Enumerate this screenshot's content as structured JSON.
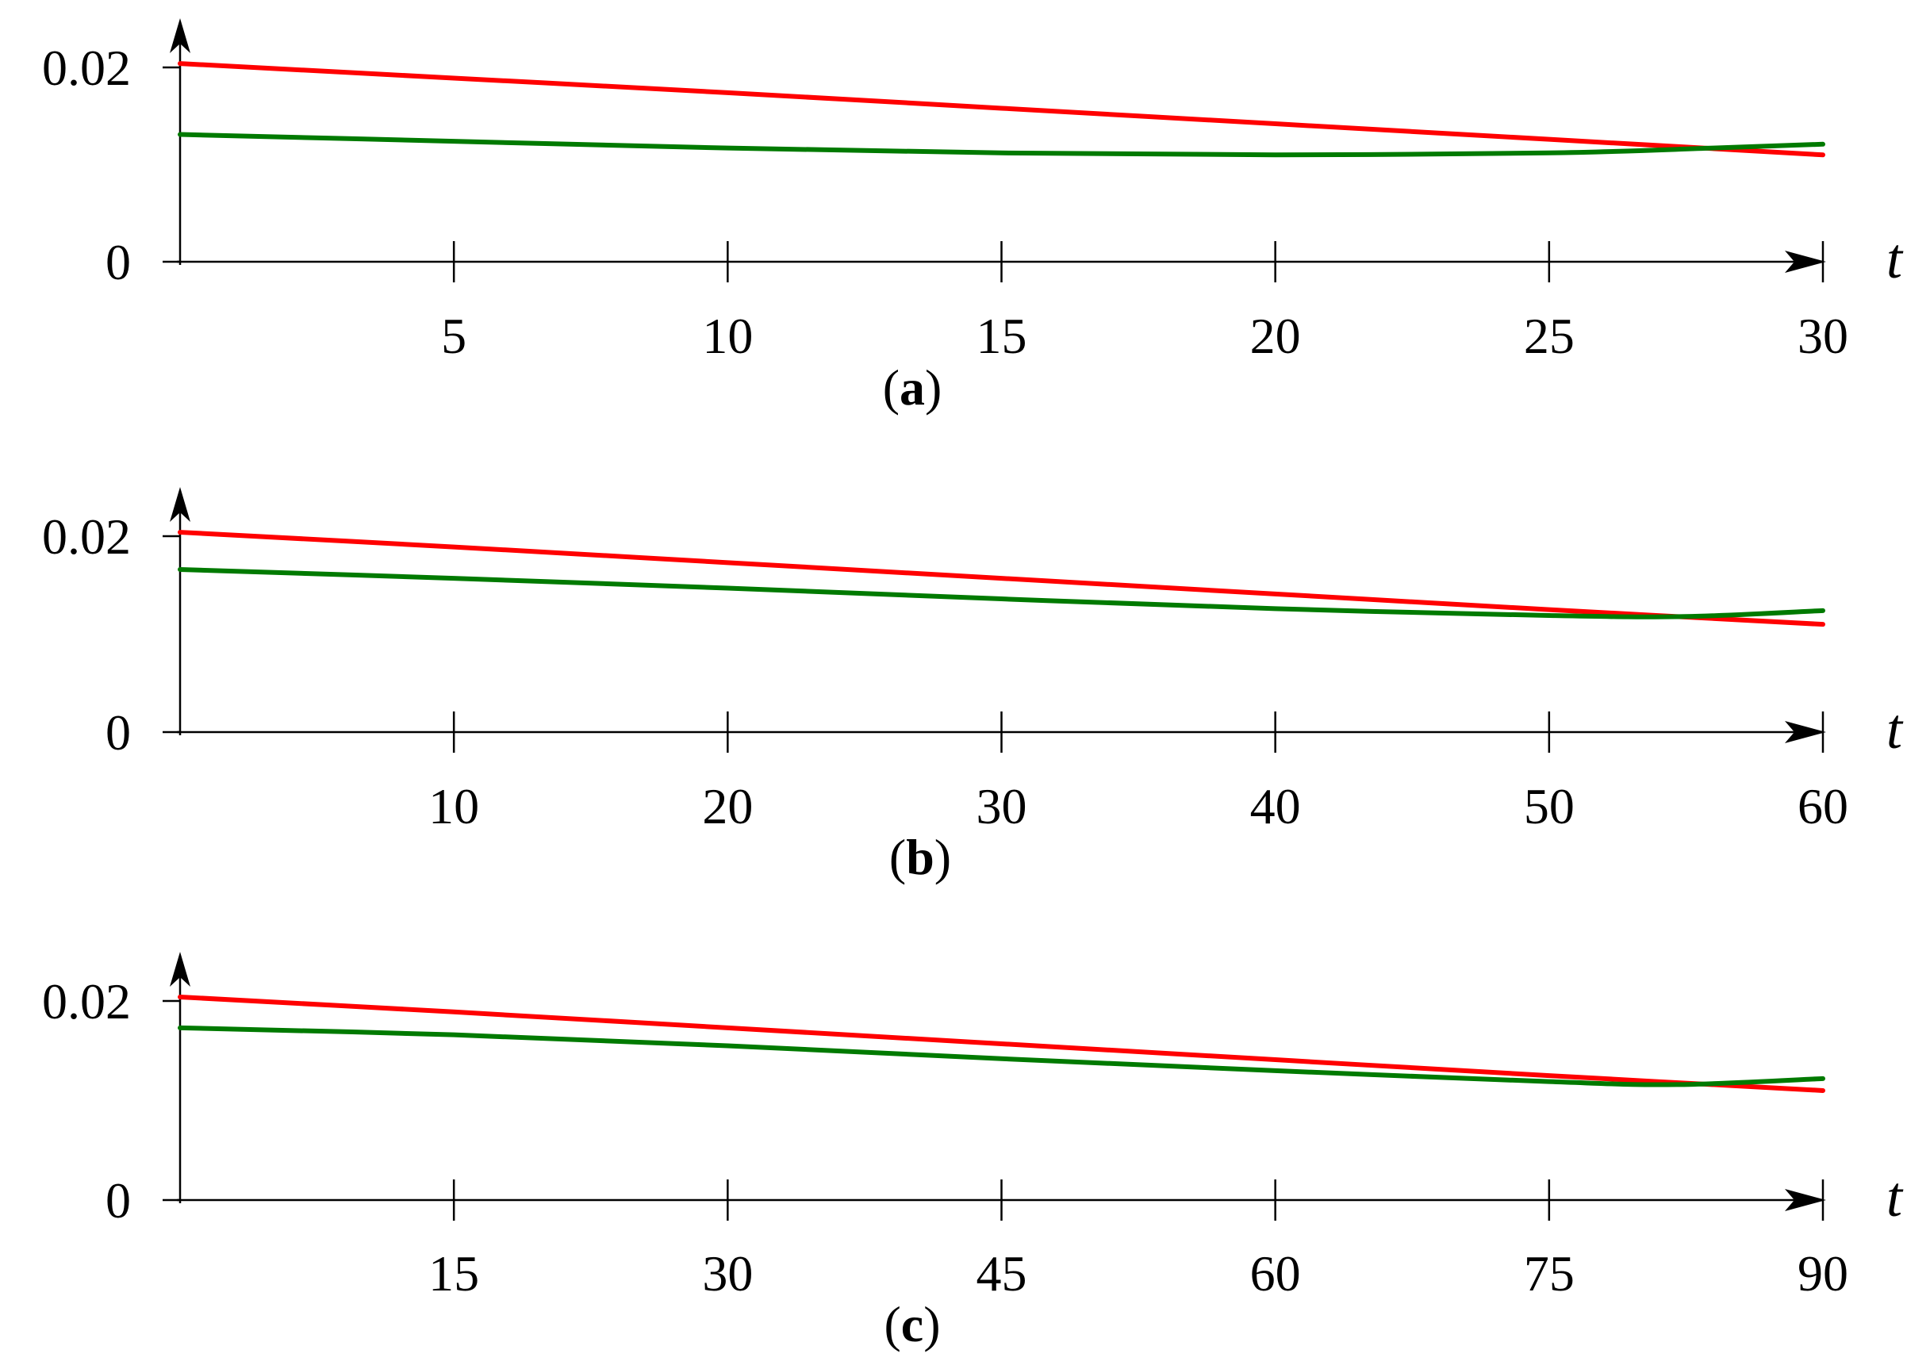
{
  "chart_data": [
    {
      "type": "line",
      "panel_label": "a",
      "xlabel": "t",
      "ylabel": "",
      "xlim": [
        0,
        30
      ],
      "ylim": [
        0,
        0.02
      ],
      "xticks": [
        5,
        10,
        15,
        20,
        25,
        30
      ],
      "xtick_labels": [
        "5",
        "10",
        "15",
        "20",
        "25",
        "30"
      ],
      "yticks": [
        0,
        0.02
      ],
      "ytick_labels": [
        "0",
        "0.02"
      ],
      "grid": false,
      "series": [
        {
          "color": "#ff0000",
          "x": [
            0,
            5,
            10,
            15,
            20,
            25,
            30
          ],
          "y": [
            0.0204,
            0.0189,
            0.0174,
            0.0158,
            0.0142,
            0.0126,
            0.011
          ]
        },
        {
          "color": "#007a00",
          "x": [
            0,
            5,
            10,
            15,
            20,
            25,
            28,
            30
          ],
          "y": [
            0.0131,
            0.0124,
            0.0117,
            0.0112,
            0.011,
            0.0112,
            0.0117,
            0.0121
          ]
        }
      ]
    },
    {
      "type": "line",
      "panel_label": "b",
      "xlabel": "t",
      "ylabel": "",
      "xlim": [
        0,
        60
      ],
      "ylim": [
        0,
        0.02
      ],
      "xticks": [
        10,
        20,
        30,
        40,
        50,
        60
      ],
      "xtick_labels": [
        "10",
        "20",
        "30",
        "40",
        "50",
        "60"
      ],
      "yticks": [
        0,
        0.02
      ],
      "ytick_labels": [
        "0",
        "0.02"
      ],
      "grid": false,
      "series": [
        {
          "color": "#ff0000",
          "x": [
            0,
            10,
            20,
            30,
            40,
            50,
            60
          ],
          "y": [
            0.0204,
            0.0189,
            0.0173,
            0.0157,
            0.0141,
            0.0125,
            0.011
          ]
        },
        {
          "color": "#007a00",
          "x": [
            0,
            10,
            20,
            30,
            40,
            50,
            55,
            60
          ],
          "y": [
            0.0166,
            0.0157,
            0.0147,
            0.0136,
            0.0126,
            0.0119,
            0.0118,
            0.0124
          ]
        }
      ]
    },
    {
      "type": "line",
      "panel_label": "c",
      "xlabel": "t",
      "ylabel": "",
      "xlim": [
        0,
        90
      ],
      "ylim": [
        0,
        0.02
      ],
      "xticks": [
        15,
        30,
        45,
        60,
        75,
        90
      ],
      "xtick_labels": [
        "15",
        "30",
        "45",
        "60",
        "75",
        "90"
      ],
      "yticks": [
        0,
        0.02
      ],
      "ytick_labels": [
        "0",
        "0.02"
      ],
      "grid": false,
      "series": [
        {
          "color": "#ff0000",
          "x": [
            0,
            15,
            30,
            45,
            60,
            75,
            90
          ],
          "y": [
            0.0204,
            0.0189,
            0.0173,
            0.0157,
            0.0141,
            0.0125,
            0.011
          ]
        },
        {
          "color": "#007a00",
          "x": [
            0,
            15,
            30,
            45,
            60,
            75,
            82,
            90
          ],
          "y": [
            0.0173,
            0.0166,
            0.0155,
            0.0142,
            0.013,
            0.0119,
            0.0116,
            0.0122
          ]
        }
      ]
    }
  ]
}
